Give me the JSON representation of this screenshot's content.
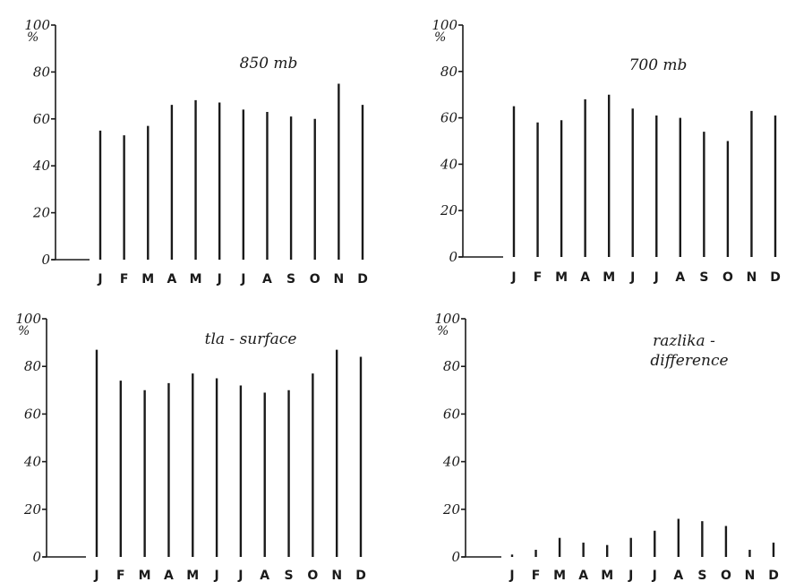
{
  "chart_data": [
    {
      "type": "bar",
      "title": "850 mb",
      "ylabel": "%",
      "categories": [
        "J",
        "F",
        "M",
        "A",
        "M",
        "J",
        "J",
        "A",
        "S",
        "O",
        "N",
        "D"
      ],
      "values": [
        55,
        53,
        57,
        66,
        68,
        67,
        64,
        63,
        61,
        60,
        75,
        66
      ],
      "ylim": [
        0,
        100
      ],
      "yticks": [
        "0",
        "20",
        "40",
        "60",
        "80",
        "100"
      ]
    },
    {
      "type": "bar",
      "title": "700 mb",
      "ylabel": "%",
      "categories": [
        "J",
        "F",
        "M",
        "A",
        "M",
        "J",
        "J",
        "A",
        "S",
        "O",
        "N",
        "D"
      ],
      "values": [
        65,
        58,
        59,
        68,
        70,
        64,
        61,
        60,
        54,
        50,
        63,
        61
      ],
      "ylim": [
        0,
        100
      ],
      "yticks": [
        "0",
        "20",
        "40",
        "60",
        "80",
        "100"
      ]
    },
    {
      "type": "bar",
      "title": "tla - surface",
      "ylabel": "%",
      "categories": [
        "J",
        "F",
        "M",
        "A",
        "M",
        "J",
        "J",
        "A",
        "S",
        "O",
        "N",
        "D"
      ],
      "values": [
        87,
        74,
        70,
        73,
        77,
        75,
        72,
        69,
        70,
        77,
        87,
        84
      ],
      "ylim": [
        0,
        100
      ],
      "yticks": [
        "0",
        "20",
        "40",
        "60",
        "80",
        "100"
      ]
    },
    {
      "type": "bar",
      "title": "razlika - difference",
      "title_lines": [
        "razlika -",
        "difference"
      ],
      "ylabel": "%",
      "categories": [
        "J",
        "F",
        "M",
        "A",
        "M",
        "J",
        "J",
        "A",
        "S",
        "O",
        "N",
        "D"
      ],
      "values": [
        1,
        3,
        8,
        6,
        5,
        8,
        11,
        16,
        15,
        13,
        3,
        6
      ],
      "ylim": [
        0,
        100
      ],
      "yticks": [
        "0",
        "20",
        "40",
        "60",
        "80",
        "100"
      ]
    }
  ]
}
